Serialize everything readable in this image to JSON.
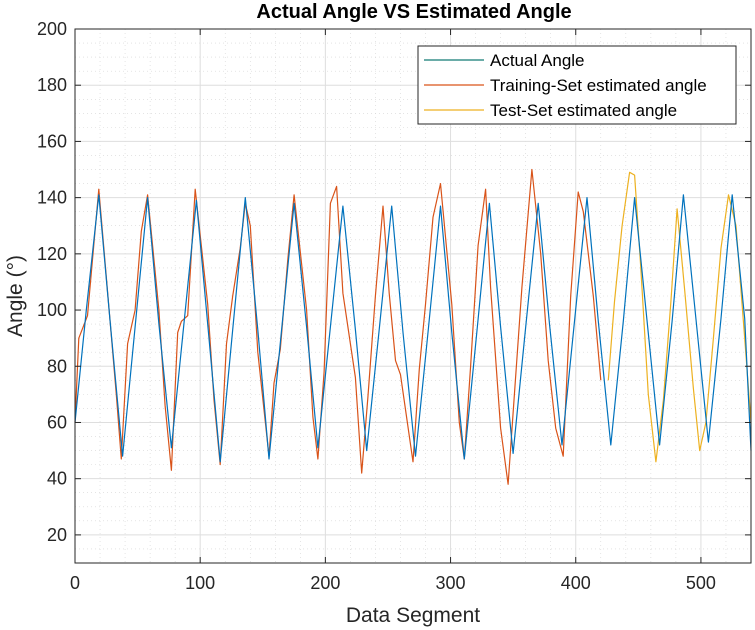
{
  "chart_data": {
    "type": "line",
    "title": "Actual Angle VS Estimated Angle",
    "xlabel": "Data Segment",
    "ylabel": "Angle (°)",
    "xlim": [
      0,
      540
    ],
    "ylim": [
      10,
      200
    ],
    "xticks": [
      0,
      100,
      200,
      300,
      400,
      500
    ],
    "yticks": [
      20,
      40,
      60,
      80,
      100,
      120,
      140,
      160,
      180,
      200
    ],
    "grid": true,
    "minor_grid": true,
    "legend_position": "top-right",
    "colors": {
      "actual": "#0072BD",
      "training": "#D95319",
      "test": "#EDB120",
      "legend_actual": "#117a73"
    },
    "series": [
      {
        "name": "Actual Angle",
        "x": [
          0,
          9,
          19,
          28,
          38,
          48,
          58,
          67,
          77,
          87,
          97,
          106,
          116,
          126,
          136,
          146,
          155,
          165,
          175,
          185,
          194,
          204,
          214,
          224,
          233,
          243,
          253,
          262,
          272,
          282,
          292,
          301,
          311,
          321,
          331,
          340,
          350,
          360,
          370,
          379,
          389,
          399,
          409,
          418,
          428,
          438,
          447,
          457,
          467,
          477,
          486,
          496,
          506,
          516,
          525,
          535,
          540
        ],
        "y": [
          60,
          100,
          141,
          96,
          48,
          94,
          140,
          95,
          51,
          95,
          139,
          95,
          46,
          93,
          140,
          93,
          47,
          93,
          138,
          94,
          51,
          94,
          137,
          93,
          50,
          93,
          137,
          92,
          48,
          92,
          137,
          92,
          47,
          92,
          138,
          94,
          49,
          94,
          138,
          95,
          52,
          96,
          140,
          96,
          52,
          96,
          140,
          96,
          52,
          96,
          141,
          97,
          53,
          97,
          141,
          97,
          50
        ]
      },
      {
        "name": "Training-Set estimated angle",
        "x": [
          0,
          3,
          10,
          14,
          19,
          28,
          33,
          37,
          42,
          48,
          53,
          58,
          67,
          72,
          77,
          82,
          85,
          90,
          96,
          106,
          111,
          116,
          121,
          126,
          132,
          136,
          140,
          146,
          155,
          159,
          164,
          170,
          175,
          185,
          190,
          194,
          199,
          204,
          209,
          214,
          224,
          229,
          234,
          240,
          246,
          251,
          256,
          260,
          270,
          275,
          280,
          286,
          292,
          301,
          307,
          311,
          316,
          322,
          328,
          332,
          340,
          346,
          351,
          357,
          365,
          372,
          378,
          384,
          390,
          396,
          402,
          406,
          414,
          420
        ],
        "y": [
          60,
          90,
          98,
          118,
          143,
          96,
          70,
          47,
          88,
          100,
          128,
          141,
          100,
          66,
          43,
          92,
          96,
          98,
          143,
          102,
          68,
          45,
          88,
          105,
          122,
          138,
          130,
          85,
          48,
          74,
          86,
          118,
          141,
          100,
          62,
          47,
          78,
          138,
          144,
          106,
          76,
          42,
          69,
          105,
          137,
          106,
          82,
          77,
          46,
          79,
          102,
          133,
          145,
          102,
          60,
          47,
          80,
          123,
          143,
          108,
          58,
          38,
          70,
          108,
          150,
          120,
          82,
          58,
          48,
          105,
          142,
          135,
          105,
          75
        ]
      },
      {
        "name": "Test-Set estimated angle",
        "x": [
          426,
          431,
          437,
          443,
          447,
          452,
          458,
          464,
          470,
          476,
          481,
          487,
          494,
          499,
          504,
          510,
          516,
          522,
          528,
          535,
          540
        ],
        "y": [
          75,
          103,
          130,
          149,
          148,
          115,
          70,
          46,
          68,
          103,
          136,
          107,
          72,
          50,
          60,
          90,
          122,
          141,
          130,
          90,
          60
        ]
      }
    ]
  }
}
